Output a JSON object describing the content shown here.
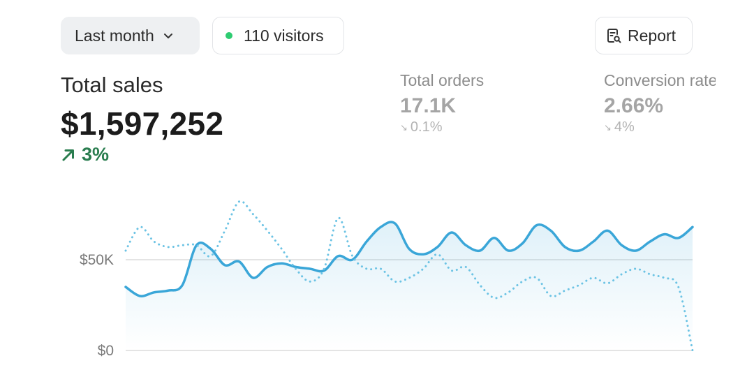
{
  "header": {
    "period_label": "Last month",
    "visitors_label": "110 visitors",
    "report_label": "Report",
    "accent_green": "#2ecc71"
  },
  "total_sales": {
    "label": "Total sales",
    "value": "$1,597,252",
    "change": "3%",
    "change_direction": "up",
    "change_color": "#2a7d4f"
  },
  "metrics": [
    {
      "label": "Total orders",
      "value": "17.1K",
      "change": "0.1%",
      "change_direction": "down"
    },
    {
      "label": "Conversion rate",
      "value": "2.66%",
      "change": "4%",
      "change_direction": "down"
    }
  ],
  "icons": {
    "period_chevron": "chevron-down-icon",
    "visitors_dot": "status-dot-icon",
    "report": "report-search-icon",
    "change_up": "arrow-up-right-icon",
    "change_down": "arrow-down-right-icon"
  },
  "chart_data": {
    "type": "line",
    "ylim": [
      0,
      100000
    ],
    "y_ticks": [
      {
        "value": 0,
        "label": "$0"
      },
      {
        "value": 50000,
        "label": "$50K"
      }
    ],
    "grid": true,
    "x": [
      0,
      1,
      2,
      3,
      4,
      5,
      6,
      7,
      8,
      9,
      10,
      11,
      12,
      13,
      14,
      15,
      16,
      17,
      18,
      19,
      20,
      21,
      22,
      23,
      24,
      25,
      26,
      27,
      28,
      29,
      30,
      31,
      32,
      33,
      34,
      35,
      36,
      37,
      38,
      39,
      40
    ],
    "series": [
      {
        "style": "solid",
        "color": "#3aa6d8",
        "values": [
          35000,
          30000,
          32000,
          33000,
          36000,
          58000,
          56000,
          47000,
          49000,
          40000,
          46000,
          48000,
          46000,
          45000,
          44000,
          52000,
          50000,
          60000,
          68000,
          70000,
          56000,
          53000,
          57000,
          65000,
          58000,
          55000,
          62000,
          55000,
          59000,
          69000,
          66000,
          57000,
          55000,
          60000,
          66000,
          58000,
          55000,
          60000,
          64000,
          62000,
          68000
        ]
      },
      {
        "style": "dotted",
        "color": "#6cc3e4",
        "values": [
          55000,
          68000,
          60000,
          57000,
          58000,
          58000,
          52000,
          66000,
          82000,
          75000,
          66000,
          56000,
          45000,
          38000,
          45000,
          73000,
          52000,
          45000,
          45000,
          38000,
          40000,
          45000,
          53000,
          44000,
          46000,
          36000,
          29000,
          32000,
          38000,
          40000,
          30000,
          33000,
          36000,
          40000,
          37000,
          42000,
          45000,
          42000,
          40000,
          35000,
          0
        ]
      }
    ]
  }
}
